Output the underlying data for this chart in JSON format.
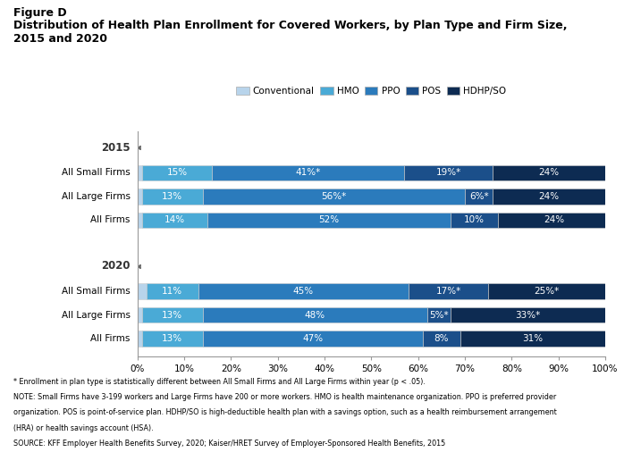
{
  "title_line1": "Figure D",
  "title_line2": "Distribution of Health Plan Enrollment for Covered Workers, by Plan Type and Firm Size,",
  "title_line3": "2015 and 2020",
  "data_2015": [
    [
      1,
      15,
      41,
      19,
      24
    ],
    [
      1,
      13,
      56,
      6,
      24
    ],
    [
      1,
      14,
      52,
      10,
      24
    ]
  ],
  "data_2020": [
    [
      2,
      11,
      45,
      17,
      25
    ],
    [
      1,
      13,
      48,
      5,
      33
    ],
    [
      1,
      13,
      47,
      8,
      31
    ]
  ],
  "labels_2015": [
    [
      "",
      "15%",
      "41%*",
      "19%*",
      "24%"
    ],
    [
      "",
      "13%",
      "56%*",
      "6%*",
      "24%"
    ],
    [
      "",
      "14%",
      "52%",
      "10%",
      "24%"
    ]
  ],
  "labels_2020": [
    [
      "",
      "11%",
      "45%",
      "17%*",
      "25%*"
    ],
    [
      "",
      "13%",
      "48%",
      "5%*",
      "33%*"
    ],
    [
      "",
      "13%",
      "47%",
      "8%",
      "31%"
    ]
  ],
  "colors": [
    "#b8d4eb",
    "#4aaad6",
    "#2b7bbc",
    "#1b4f8a",
    "#0d2b52"
  ],
  "legend_labels": [
    "Conventional",
    "HMO",
    "PPO",
    "POS",
    "HDHP/SO"
  ],
  "year_labels": [
    "2015",
    "2020"
  ],
  "cat_labels": [
    "All Small Firms",
    "All Large Firms",
    "All Firms"
  ],
  "footnotes": [
    "* Enrollment in plan type is statistically different between All Small Firms and All Large Firms within year (p < .05).",
    "NOTE: Small Firms have 3-199 workers and Large Firms have 200 or more workers. HMO is health maintenance organization. PPO is preferred provider",
    "organization. POS is point-of-service plan. HDHP/SO is high-deductible health plan with a savings option, such as a health reimbursement arrangement",
    "(HRA) or health savings account (HSA).",
    "SOURCE: KFF Employer Health Benefits Survey, 2020; Kaiser/HRET Survey of Employer-Sponsored Health Benefits, 2015"
  ]
}
